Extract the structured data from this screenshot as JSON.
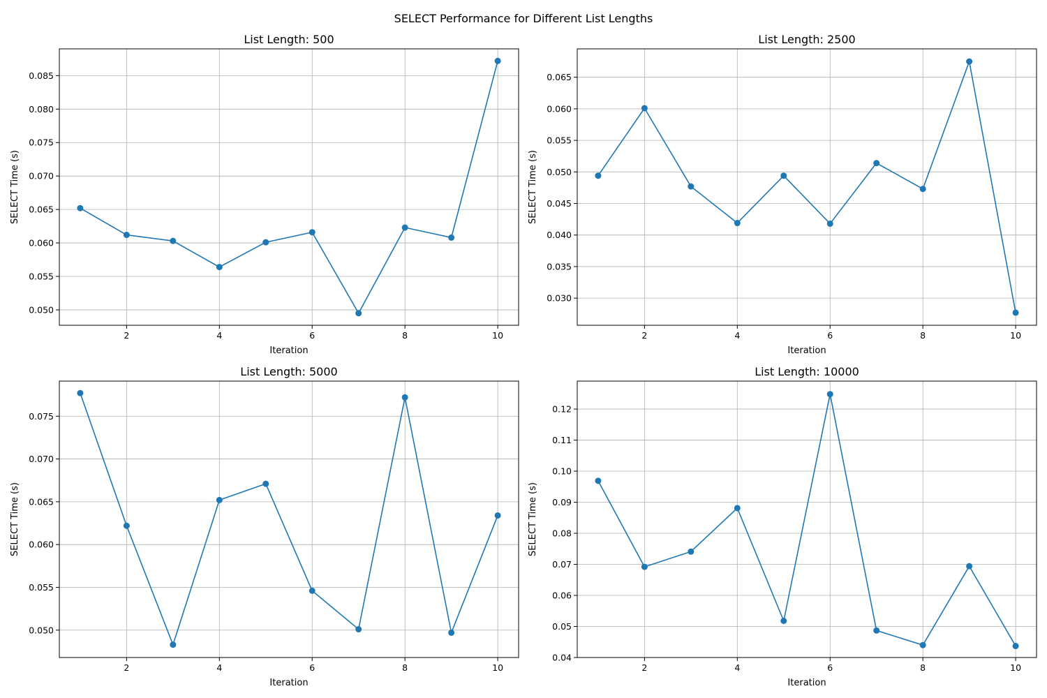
{
  "figure_title": "SELECT Performance for Different List Lengths",
  "colors": {
    "line": "#1f77b4",
    "grid": "#b0b0b0",
    "axis": "#000000"
  },
  "chart_data": [
    {
      "type": "line",
      "title": "List Length: 500",
      "xlabel": "Iteration",
      "ylabel": "SELECT Time (s)",
      "grid": true,
      "marker": "circle",
      "x": [
        1,
        2,
        3,
        4,
        5,
        6,
        7,
        8,
        9,
        10
      ],
      "series": [
        {
          "values": [
            0.0652,
            0.0612,
            0.0603,
            0.0564,
            0.0601,
            0.0616,
            0.0495,
            0.0623,
            0.0608,
            0.0872
          ]
        }
      ],
      "xlim": [
        0.55,
        10.45
      ],
      "ylim": [
        0.0477,
        0.089
      ],
      "xticks": [
        2,
        4,
        6,
        8,
        10
      ],
      "yticks": [
        0.05,
        0.055,
        0.06,
        0.065,
        0.07,
        0.075,
        0.08,
        0.085
      ],
      "ytick_labels": [
        "0.050",
        "0.055",
        "0.060",
        "0.065",
        "0.070",
        "0.075",
        "0.080",
        "0.085"
      ]
    },
    {
      "type": "line",
      "title": "List Length: 2500",
      "xlabel": "Iteration",
      "ylabel": "SELECT Time (s)",
      "grid": true,
      "marker": "circle",
      "x": [
        1,
        2,
        3,
        4,
        5,
        6,
        7,
        8,
        9,
        10
      ],
      "series": [
        {
          "values": [
            0.0494,
            0.0601,
            0.0477,
            0.0419,
            0.0494,
            0.0418,
            0.0514,
            0.0473,
            0.0675,
            0.0277
          ]
        }
      ],
      "xlim": [
        0.55,
        10.45
      ],
      "ylim": [
        0.0257,
        0.0695
      ],
      "xticks": [
        2,
        4,
        6,
        8,
        10
      ],
      "yticks": [
        0.03,
        0.035,
        0.04,
        0.045,
        0.05,
        0.055,
        0.06,
        0.065
      ],
      "ytick_labels": [
        "0.030",
        "0.035",
        "0.040",
        "0.045",
        "0.050",
        "0.055",
        "0.060",
        "0.065"
      ]
    },
    {
      "type": "line",
      "title": "List Length: 5000",
      "xlabel": "Iteration",
      "ylabel": "SELECT Time (s)",
      "grid": true,
      "marker": "circle",
      "x": [
        1,
        2,
        3,
        4,
        5,
        6,
        7,
        8,
        9,
        10
      ],
      "series": [
        {
          "values": [
            0.0777,
            0.0622,
            0.0483,
            0.0652,
            0.0671,
            0.0546,
            0.0501,
            0.0772,
            0.0497,
            0.0634
          ]
        }
      ],
      "xlim": [
        0.55,
        10.45
      ],
      "ylim": [
        0.0468,
        0.0791
      ],
      "xticks": [
        2,
        4,
        6,
        8,
        10
      ],
      "yticks": [
        0.05,
        0.055,
        0.06,
        0.065,
        0.07,
        0.075
      ],
      "ytick_labels": [
        "0.050",
        "0.055",
        "0.060",
        "0.065",
        "0.070",
        "0.075"
      ]
    },
    {
      "type": "line",
      "title": "List Length: 10000",
      "xlabel": "Iteration",
      "ylabel": "SELECT Time (s)",
      "grid": true,
      "marker": "circle",
      "x": [
        1,
        2,
        3,
        4,
        5,
        6,
        7,
        8,
        9,
        10
      ],
      "series": [
        {
          "values": [
            0.0969,
            0.0692,
            0.0741,
            0.0881,
            0.0518,
            0.1248,
            0.0487,
            0.044,
            0.0694,
            0.0437
          ]
        }
      ],
      "xlim": [
        0.55,
        10.45
      ],
      "ylim": [
        0.04,
        0.129
      ],
      "xticks": [
        2,
        4,
        6,
        8,
        10
      ],
      "yticks": [
        0.04,
        0.05,
        0.06,
        0.07,
        0.08,
        0.09,
        0.1,
        0.11,
        0.12
      ],
      "ytick_labels": [
        "0.04",
        "0.05",
        "0.06",
        "0.07",
        "0.08",
        "0.09",
        "0.10",
        "0.11",
        "0.12"
      ]
    }
  ]
}
